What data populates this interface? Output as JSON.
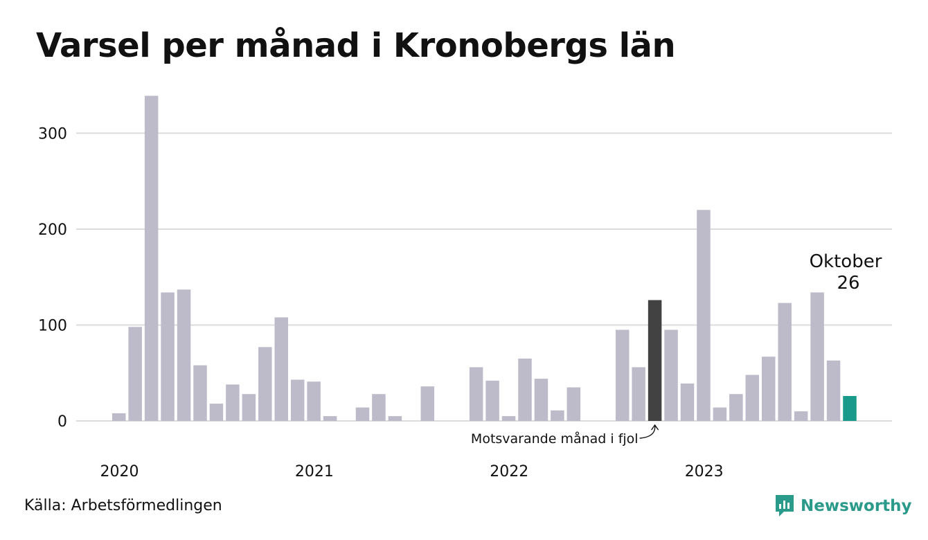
{
  "title": "Varsel per månad i Kronobergs län",
  "source": "Källa: Arbetsförmedlingen",
  "brand": {
    "name": "Newsworthy",
    "icon": "newsworthy-logo-icon",
    "color": "#2a9a8a"
  },
  "colors": {
    "bar": "#bdbbca",
    "comparison": "#424242",
    "current": "#1a9a8a",
    "grid": "#dcdcdc"
  },
  "chart_data": {
    "type": "bar",
    "title": "Varsel per månad i Kronobergs län",
    "xlabel": "",
    "ylabel": "",
    "ylim": [
      0,
      340
    ],
    "yticks": [
      0,
      100,
      200,
      300
    ],
    "grid": true,
    "year_labels": [
      {
        "label": "2020",
        "index": 0
      },
      {
        "label": "2021",
        "index": 12
      },
      {
        "label": "2022",
        "index": 24
      },
      {
        "label": "2023",
        "index": 36
      }
    ],
    "categories": [
      "2020-01",
      "2020-02",
      "2020-03",
      "2020-04",
      "2020-05",
      "2020-06",
      "2020-07",
      "2020-08",
      "2020-09",
      "2020-10",
      "2020-11",
      "2020-12",
      "2021-01",
      "2021-02",
      "2021-03",
      "2021-04",
      "2021-05",
      "2021-06",
      "2021-07",
      "2021-08",
      "2021-09",
      "2021-10",
      "2021-11",
      "2021-12",
      "2022-01",
      "2022-02",
      "2022-03",
      "2022-04",
      "2022-05",
      "2022-06",
      "2022-07",
      "2022-08",
      "2022-09",
      "2022-10",
      "2022-11",
      "2022-12",
      "2023-01",
      "2023-02",
      "2023-03",
      "2023-04",
      "2023-05",
      "2023-06",
      "2023-07",
      "2023-08",
      "2023-09",
      "2023-10"
    ],
    "values": [
      8,
      98,
      339,
      134,
      137,
      58,
      18,
      38,
      28,
      77,
      108,
      43,
      41,
      5,
      0,
      14,
      28,
      5,
      0,
      36,
      0,
      0,
      56,
      42,
      5,
      65,
      44,
      11,
      35,
      0,
      0,
      95,
      56,
      126,
      95,
      39,
      220,
      14,
      28,
      48,
      67,
      123,
      10,
      134,
      63,
      26
    ],
    "highlight": {
      "comparison_index": 33,
      "current_index": 45
    },
    "annotations": {
      "comparison_label": "Motsvarande månad i fjol",
      "current_month": "Oktober",
      "current_value": "26"
    }
  }
}
